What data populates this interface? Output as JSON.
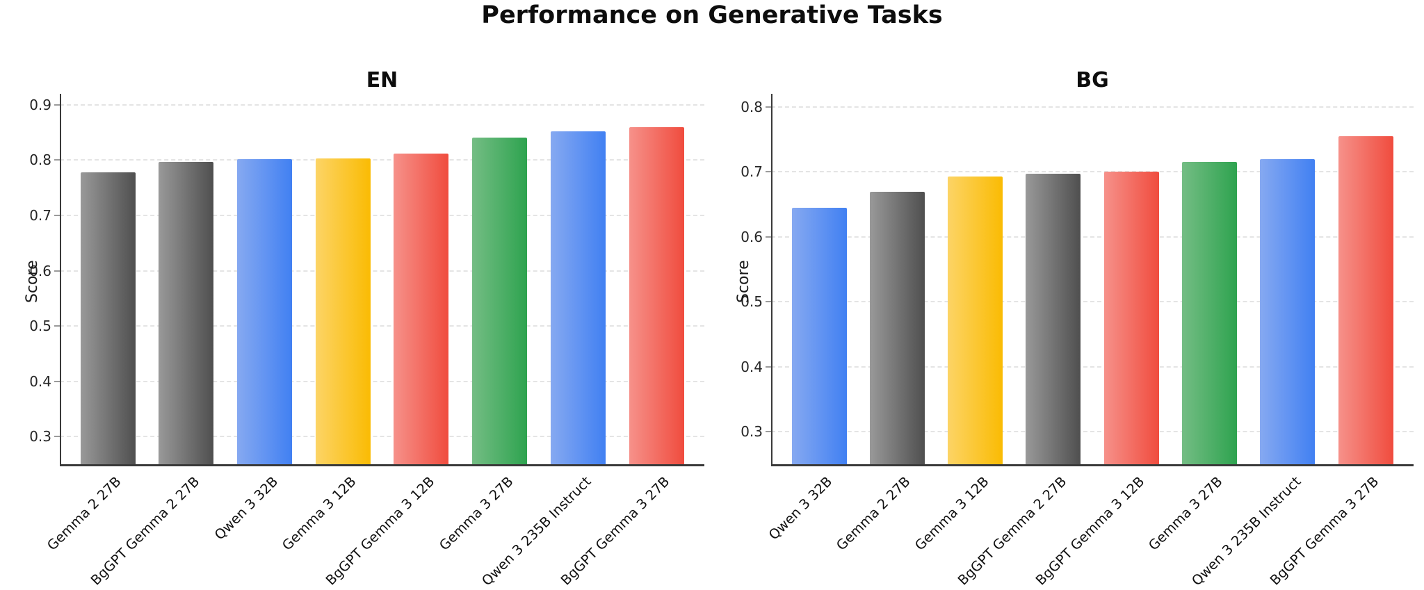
{
  "title": "Performance on Generative Tasks",
  "palette": {
    "gray": [
      "#999999",
      "#4f4f4f"
    ],
    "blue": [
      "#86a9f1",
      "#4180f2"
    ],
    "yellow": [
      "#fcd466",
      "#fabb03"
    ],
    "red": [
      "#f6918a",
      "#f04c3e"
    ],
    "green": [
      "#74bd84",
      "#2ea34f"
    ]
  },
  "chart_data": [
    {
      "type": "bar",
      "title": "EN",
      "ylabel": "Score",
      "ylim": [
        0.25,
        0.92
      ],
      "yticks": [
        0.3,
        0.4,
        0.5,
        0.6,
        0.7,
        0.8,
        0.9
      ],
      "grid": true,
      "legend": "none",
      "categories": [
        "Gemma 2 27B",
        "BgGPT Gemma 2 27B",
        "Qwen 3 32B",
        "Gemma 3 12B",
        "BgGPT Gemma 3 12B",
        "Gemma 3 27B",
        "Qwen 3 235B Instruct",
        "BgGPT Gemma 3 27B"
      ],
      "values": [
        0.778,
        0.797,
        0.802,
        0.803,
        0.812,
        0.841,
        0.852,
        0.86
      ],
      "colors": [
        "gray",
        "gray",
        "blue",
        "yellow",
        "red",
        "green",
        "blue",
        "red"
      ]
    },
    {
      "type": "bar",
      "title": "BG",
      "ylabel": "Score",
      "ylim": [
        0.25,
        0.82
      ],
      "yticks": [
        0.3,
        0.4,
        0.5,
        0.6,
        0.7,
        0.8
      ],
      "grid": true,
      "legend": "none",
      "categories": [
        "Qwen 3 32B",
        "Gemma 2 27B",
        "Gemma 3 12B",
        "BgGPT Gemma 2 27B",
        "BgGPT Gemma 3 12B",
        "Gemma 3 27B",
        "Qwen 3 235B Instruct",
        "BgGPT Gemma 3 27B"
      ],
      "values": [
        0.645,
        0.669,
        0.693,
        0.697,
        0.7,
        0.715,
        0.72,
        0.755
      ],
      "colors": [
        "blue",
        "gray",
        "yellow",
        "gray",
        "red",
        "green",
        "blue",
        "red"
      ]
    }
  ]
}
